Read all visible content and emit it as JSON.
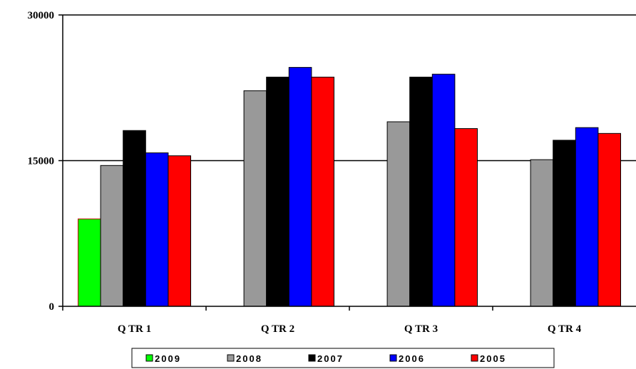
{
  "chart_data": {
    "type": "bar",
    "title": "",
    "xlabel": "",
    "ylabel": "",
    "ylim": [
      0,
      30000
    ],
    "yticks": [
      0,
      15000,
      30000
    ],
    "grid": "horizontal at 15000 and 30000",
    "legend_placement": "bottom",
    "categories": [
      "Q TR 1",
      "Q TR 2",
      "Q TR 3",
      "Q TR 4"
    ],
    "series": [
      {
        "name": "2009",
        "color": "#00ff00",
        "values": [
          9000,
          null,
          null,
          null
        ]
      },
      {
        "name": "2008",
        "color": "#999999",
        "values": [
          14500,
          22200,
          19000,
          15100
        ]
      },
      {
        "name": "2007",
        "color": "#000000",
        "values": [
          18100,
          23600,
          23600,
          17100
        ]
      },
      {
        "name": "2006",
        "color": "#0000ff",
        "values": [
          15800,
          24600,
          23900,
          18400
        ]
      },
      {
        "name": "2005",
        "color": "#ff0000",
        "values": [
          15500,
          23600,
          18300,
          17800
        ]
      }
    ]
  }
}
